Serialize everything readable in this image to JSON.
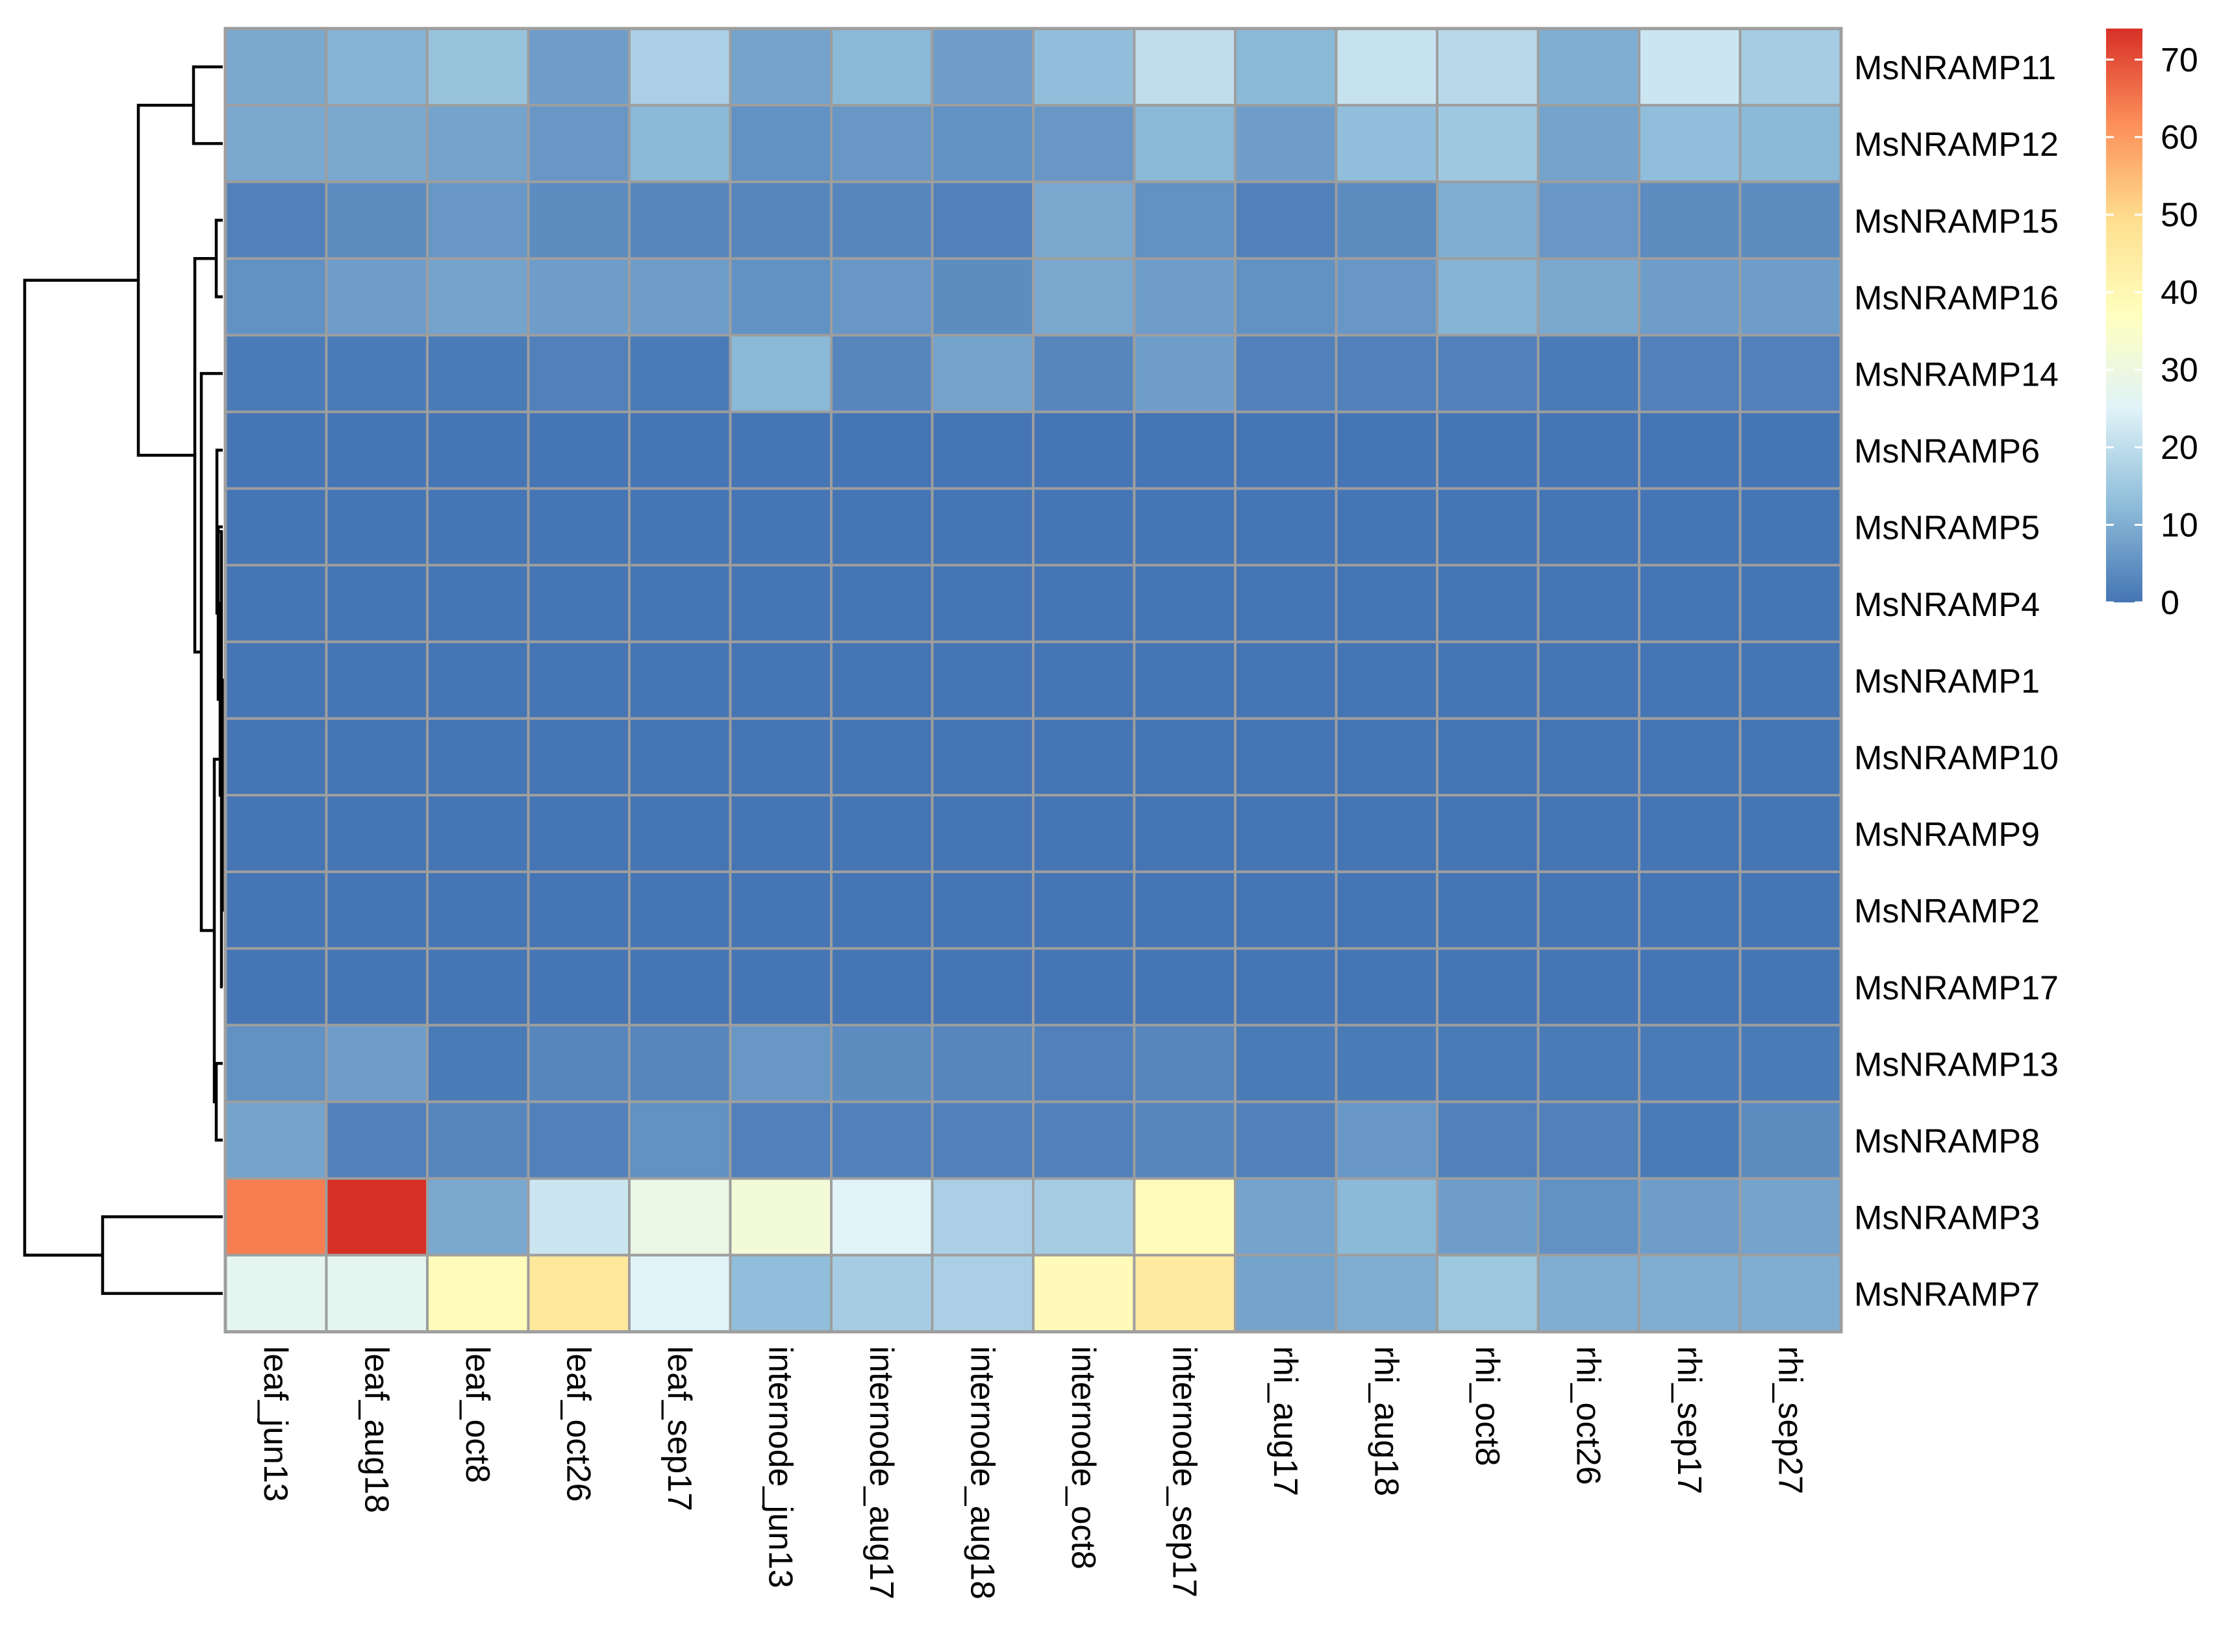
{
  "chart_data": {
    "type": "heatmap",
    "title": "",
    "xlabel": "",
    "ylabel": "",
    "columns": [
      "leaf_jun13",
      "leaf_aug18",
      "leaf_oct8",
      "leaf_oct26",
      "leaf_sep17",
      "internode_jun13",
      "internode_aug17",
      "internode_aug18",
      "internode_oct8",
      "internode_sep17",
      "rhi_aug17",
      "rhi_aug18",
      "rhi_oct8",
      "rhi_oct26",
      "rhi_sep17",
      "rhi_sep27"
    ],
    "rows": [
      "MsNRAMP11",
      "MsNRAMP12",
      "MsNRAMP15",
      "MsNRAMP16",
      "MsNRAMP14",
      "MsNRAMP6",
      "MsNRAMP5",
      "MsNRAMP4",
      "MsNRAMP1",
      "MsNRAMP10",
      "MsNRAMP9",
      "MsNRAMP2",
      "MsNRAMP17",
      "MsNRAMP13",
      "MsNRAMP8",
      "MsNRAMP3",
      "MsNRAMP7"
    ],
    "values": [
      [
        9,
        11,
        14,
        7,
        17,
        8,
        12,
        7,
        13,
        20,
        12,
        21,
        19,
        10,
        22,
        16
      ],
      [
        9,
        9,
        8,
        6,
        12,
        5,
        6,
        5,
        6,
        12,
        7,
        13,
        15,
        8,
        13,
        12
      ],
      [
        2,
        4,
        6,
        4,
        3,
        3,
        3,
        2,
        9,
        5,
        2,
        4,
        10,
        6,
        4,
        4
      ],
      [
        5,
        7,
        8,
        7,
        7,
        5,
        6,
        4,
        9,
        7,
        5,
        6,
        11,
        9,
        7,
        7
      ],
      [
        1,
        1,
        1,
        2,
        1,
        12,
        3,
        8,
        3,
        7,
        2,
        2,
        2,
        1,
        2,
        2
      ],
      [
        0,
        0,
        0,
        0,
        0,
        0,
        0,
        0,
        0,
        0,
        0,
        0,
        0,
        0,
        0,
        0
      ],
      [
        0,
        0,
        0,
        0,
        0,
        0,
        0,
        0,
        0,
        0,
        0,
        0,
        0,
        0,
        0,
        0
      ],
      [
        0,
        0,
        0,
        0,
        0,
        0,
        0,
        0,
        0,
        0,
        0,
        0,
        0,
        0,
        0,
        0
      ],
      [
        0,
        0,
        0,
        0,
        0,
        0,
        0,
        0,
        0,
        0,
        0,
        0,
        0,
        0,
        0,
        0
      ],
      [
        0,
        0,
        0,
        0,
        0,
        0,
        0,
        0,
        0,
        0,
        0,
        0,
        0,
        0,
        0,
        0
      ],
      [
        0,
        0,
        0,
        0,
        0,
        0,
        0,
        0,
        0,
        0,
        0,
        0,
        0,
        0,
        0,
        0
      ],
      [
        0,
        0,
        0,
        0,
        0,
        0,
        0,
        0,
        0,
        0,
        0,
        0,
        0,
        0,
        0,
        0
      ],
      [
        0,
        0,
        0,
        0,
        0,
        0,
        0,
        0,
        0,
        0,
        0,
        0,
        0,
        0,
        0,
        0
      ],
      [
        5,
        7,
        1,
        3,
        3,
        6,
        4,
        3,
        2,
        3,
        1,
        1,
        1,
        1,
        1,
        1
      ],
      [
        8,
        2,
        3,
        2,
        5,
        2,
        2,
        2,
        2,
        3,
        2,
        6,
        2,
        2,
        1,
        4
      ],
      [
        64,
        74,
        9,
        22,
        29,
        32,
        25,
        17,
        16,
        38,
        8,
        12,
        7,
        5,
        7,
        8
      ],
      [
        27,
        27,
        38,
        46,
        25,
        13,
        16,
        17,
        39,
        45,
        8,
        10,
        15,
        10,
        10,
        10
      ]
    ],
    "color_scale": {
      "min": 0,
      "max": 74,
      "ticks": [
        0,
        10,
        20,
        30,
        40,
        50,
        60,
        70
      ],
      "stops": [
        {
          "value": 0,
          "color": "#4575b4"
        },
        {
          "value": 13,
          "color": "#91bfdb"
        },
        {
          "value": 25,
          "color": "#e0f3f8"
        },
        {
          "value": 37,
          "color": "#ffffbf"
        },
        {
          "value": 49,
          "color": "#fee090"
        },
        {
          "value": 62,
          "color": "#fc8d59"
        },
        {
          "value": 74,
          "color": "#d73027"
        }
      ]
    },
    "cell_border_color": "#9e9e9e",
    "dendrogram": "rows",
    "legend_placement": "top-right"
  }
}
